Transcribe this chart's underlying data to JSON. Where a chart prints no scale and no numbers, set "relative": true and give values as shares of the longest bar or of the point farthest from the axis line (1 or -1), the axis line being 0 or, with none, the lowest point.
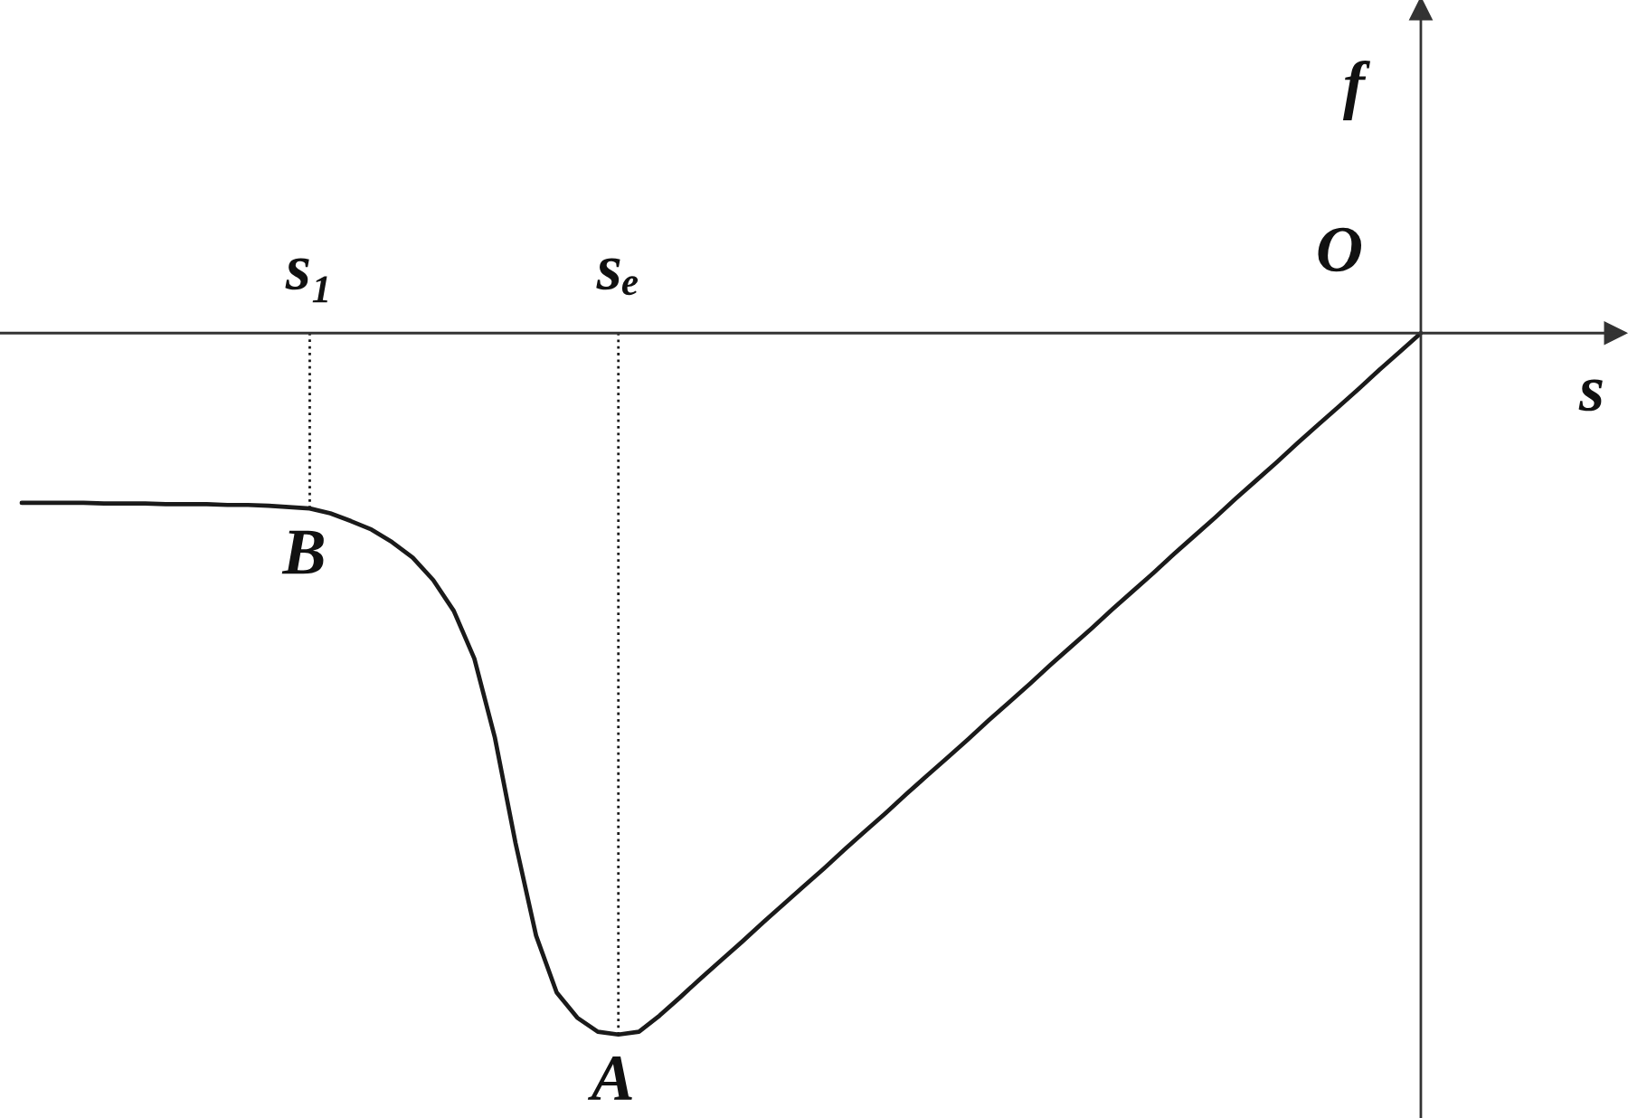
{
  "chart_data": {
    "type": "line",
    "relative": true,
    "xlabel": "s",
    "ylabel": "f",
    "categories": [
      null,
      null,
      null,
      null,
      null,
      null,
      null,
      null,
      null,
      null,
      null,
      null,
      null,
      null,
      "s₁",
      null,
      null,
      null,
      null,
      null,
      null,
      null,
      null,
      null,
      null,
      null,
      null,
      null,
      null,
      "sₑ",
      null,
      null,
      null,
      null,
      null,
      null,
      null,
      null,
      null,
      null,
      null,
      null,
      null,
      null,
      null,
      null,
      null,
      null,
      null,
      null,
      null,
      null,
      null,
      null,
      null,
      null,
      null,
      null,
      null,
      null,
      null,
      null,
      null,
      null,
      null,
      null,
      null,
      null,
      null
    ],
    "series": [
      {
        "color": "#1a1a1a",
        "line_style": "solid",
        "values": [
          -0.242,
          -0.242,
          -0.242,
          -0.242,
          -0.243,
          -0.243,
          -0.243,
          -0.244,
          -0.244,
          -0.244,
          -0.245,
          -0.245,
          -0.246,
          -0.248,
          -0.25,
          -0.257,
          -0.268,
          -0.28,
          -0.298,
          -0.32,
          -0.352,
          -0.396,
          -0.464,
          -0.577,
          -0.727,
          -0.859,
          -0.94,
          -0.976,
          -0.996,
          -1.0,
          -0.996,
          -0.973,
          -0.947,
          -0.92,
          -0.894,
          -0.868,
          -0.841,
          -0.815,
          -0.789,
          -0.763,
          -0.736,
          -0.71,
          -0.684,
          -0.657,
          -0.631,
          -0.605,
          -0.579,
          -0.552,
          -0.526,
          -0.5,
          -0.473,
          -0.447,
          -0.421,
          -0.394,
          -0.368,
          -0.342,
          -0.315,
          -0.289,
          -0.263,
          -0.236,
          -0.21,
          -0.184,
          -0.157,
          -0.131,
          -0.105,
          -0.079,
          -0.052,
          -0.026,
          0
        ]
      }
    ],
    "ref_lines": [
      {
        "axis": "x",
        "value": "s₁",
        "color": "#1a1a1a",
        "line_style": "dotted"
      },
      {
        "axis": "x",
        "value": "sₑ",
        "color": "#1a1a1a",
        "line_style": "dotted"
      }
    ],
    "annotations": [
      "O",
      {
        "text": "B",
        "x": "s₁",
        "y": -0.25
      },
      {
        "text": "A",
        "x": "sₑ",
        "y": -1.0
      }
    ]
  }
}
